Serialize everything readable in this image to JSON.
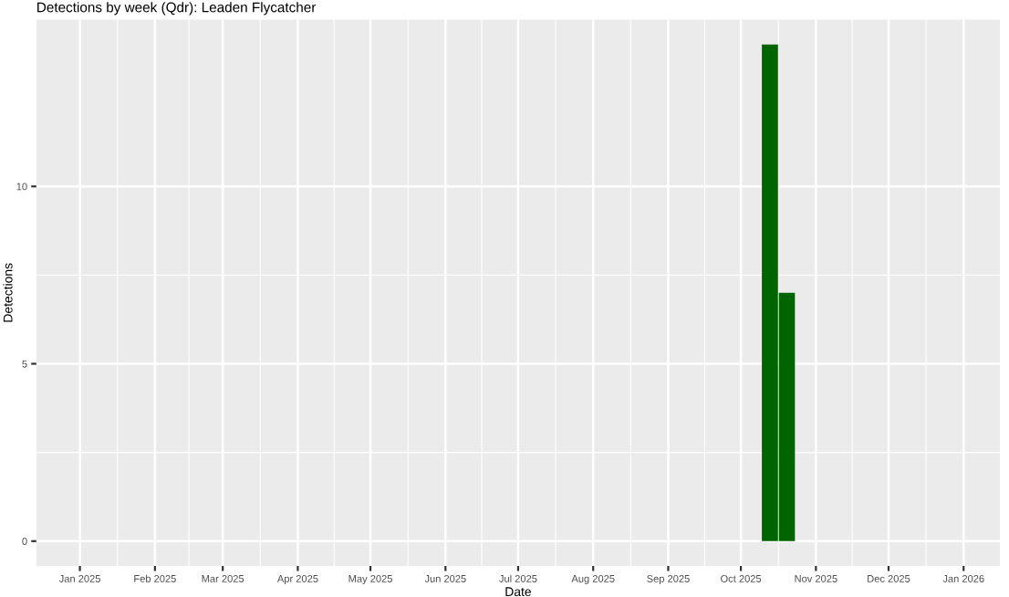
{
  "chart_data": {
    "type": "bar",
    "title": "Detections by week (Qdr): Leaden Flycatcher",
    "xlabel": "Date",
    "ylabel": "Detections",
    "x": [
      "2025-10-13",
      "2025-10-20"
    ],
    "series": [
      {
        "color": "#006400",
        "values": [
          14,
          7
        ]
      }
    ],
    "xlim": [
      "2024-12-14",
      "2026-01-16"
    ],
    "ylim": [
      -0.7,
      14.7
    ],
    "xticks": [
      {
        "value": "2025-01-01",
        "label": "Jan 2025"
      },
      {
        "value": "2025-02-01",
        "label": "Feb 2025"
      },
      {
        "value": "2025-03-01",
        "label": "Mar 2025"
      },
      {
        "value": "2025-04-01",
        "label": "Apr 2025"
      },
      {
        "value": "2025-05-01",
        "label": "May 2025"
      },
      {
        "value": "2025-06-01",
        "label": "Jun 2025"
      },
      {
        "value": "2025-07-01",
        "label": "Jul 2025"
      },
      {
        "value": "2025-08-01",
        "label": "Aug 2025"
      },
      {
        "value": "2025-09-01",
        "label": "Sep 2025"
      },
      {
        "value": "2025-10-01",
        "label": "Oct 2025"
      },
      {
        "value": "2025-11-01",
        "label": "Nov 2025"
      },
      {
        "value": "2025-12-01",
        "label": "Dec 2025"
      },
      {
        "value": "2026-01-01",
        "label": "Jan 2026"
      }
    ],
    "yticks": [
      0,
      5,
      10
    ],
    "grid": true
  }
}
